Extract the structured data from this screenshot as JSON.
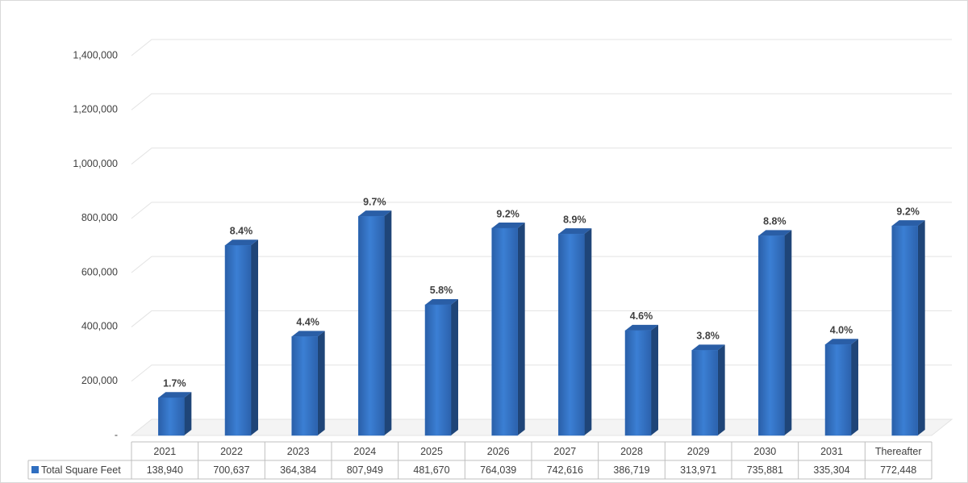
{
  "chart_data": {
    "type": "bar3d",
    "categories": [
      "2021",
      "2022",
      "2023",
      "2024",
      "2025",
      "2026",
      "2027",
      "2028",
      "2029",
      "2030",
      "2031",
      "Thereafter"
    ],
    "series": [
      {
        "name": "Total Square Feet",
        "color": "#2f6ec0",
        "values": [
          138940,
          700637,
          364384,
          807949,
          481670,
          764039,
          742616,
          386719,
          313971,
          735881,
          335304,
          772448
        ],
        "value_labels": [
          "138,940",
          "700,637",
          "364,384",
          "807,949",
          "481,670",
          "764,039",
          "742,616",
          "386,719",
          "313,971",
          "735,881",
          "335,304",
          "772,448"
        ]
      }
    ],
    "bar_labels": [
      "1.7%",
      "8.4%",
      "4.4%",
      "9.7%",
      "5.8%",
      "9.2%",
      "8.9%",
      "4.6%",
      "3.8%",
      "8.8%",
      "4.0%",
      "9.2%"
    ],
    "ylim": [
      0,
      1400000
    ],
    "yticks": [
      {
        "value": 0,
        "label": "-"
      },
      {
        "value": 200000,
        "label": "200,000"
      },
      {
        "value": 400000,
        "label": "400,000"
      },
      {
        "value": 600000,
        "label": "600,000"
      },
      {
        "value": 800000,
        "label": "800,000"
      },
      {
        "value": 1000000,
        "label": "1,000,000"
      },
      {
        "value": 1200000,
        "label": "1,200,000"
      },
      {
        "value": 1400000,
        "label": "1,400,000"
      }
    ],
    "grid": true,
    "data_table": true
  }
}
